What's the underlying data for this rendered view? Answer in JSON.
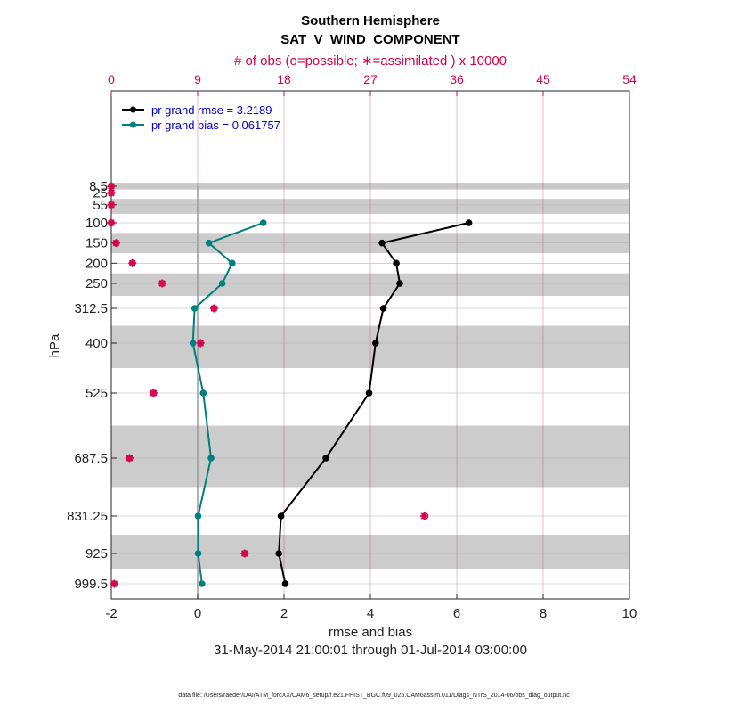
{
  "chart_data": {
    "type": "line",
    "title": "Southern Hemisphere",
    "subtitle": "SAT_V_WIND_COMPONENT",
    "top_axis_label": "# of obs (o=possible; ∗=assimilated ) x 10000",
    "xlabel": "rmse and bias",
    "ylabel": "hPa",
    "date_range": "31-May-2014 21:00:01 through 01-Jul-2014 03:00:00",
    "footnote": "data file: /Users/raeder/DAI/ATM_forcXX/CAM6_setup/f.e21.FHIST_BGC.f09_025.CAM6assim.011/Diags_NTrS_2014-06/obs_diag_output.nc",
    "xlim": [
      -2,
      10
    ],
    "x_ticks": [
      "-2",
      "0",
      "2",
      "4",
      "6",
      "8",
      "10"
    ],
    "top_xlim": [
      0,
      54
    ],
    "top_ticks": [
      "0",
      "9",
      "18",
      "27",
      "36",
      "45",
      "54"
    ],
    "levels": [
      8.5,
      25,
      55,
      100,
      150,
      200,
      250,
      312.5,
      400,
      525,
      687.5,
      831.25,
      925,
      999.5
    ],
    "level_labels": [
      "8.5",
      "25",
      "55",
      "100",
      "150",
      "200",
      "250",
      "312.5",
      "400",
      "525",
      "687.5",
      "831.25",
      "925",
      "999.5"
    ],
    "legend_position": "top-left",
    "series": [
      {
        "name": "pr grand rmse",
        "legend": "pr grand rmse = 3.2189",
        "color": "#000000",
        "levels": [
          100,
          150,
          200,
          250,
          312.5,
          400,
          525,
          687.5,
          831.25,
          925,
          999.5
        ],
        "values": [
          6.28,
          4.27,
          4.6,
          4.68,
          4.3,
          4.12,
          3.97,
          2.97,
          1.93,
          1.88,
          2.03
        ]
      },
      {
        "name": "pr grand bias",
        "legend": "pr grand bias = 0.061757",
        "color": "#007f7f",
        "levels": [
          100,
          150,
          200,
          250,
          312.5,
          400,
          525,
          687.5,
          831.25,
          925,
          999.5
        ],
        "values": [
          1.52,
          0.26,
          0.8,
          0.57,
          -0.07,
          -0.11,
          0.13,
          0.31,
          0.01,
          0.01,
          0.1
        ]
      }
    ],
    "obs_counts": {
      "color": "#d6004d",
      "units": "x 10000",
      "levels": [
        8.5,
        25,
        55,
        100,
        150,
        200,
        250,
        312.5,
        400,
        525,
        687.5,
        831.25,
        925,
        999.5
      ],
      "possible": [
        0,
        0,
        0,
        0,
        0.5,
        2.2,
        5.3,
        10.7,
        9.3,
        4.4,
        1.9,
        32.7,
        13.9,
        0.3
      ],
      "assimilated": [
        0,
        0,
        0,
        0,
        0.5,
        2.2,
        5.3,
        10.7,
        9.3,
        4.4,
        1.9,
        32.6,
        13.9,
        0.3
      ]
    }
  }
}
